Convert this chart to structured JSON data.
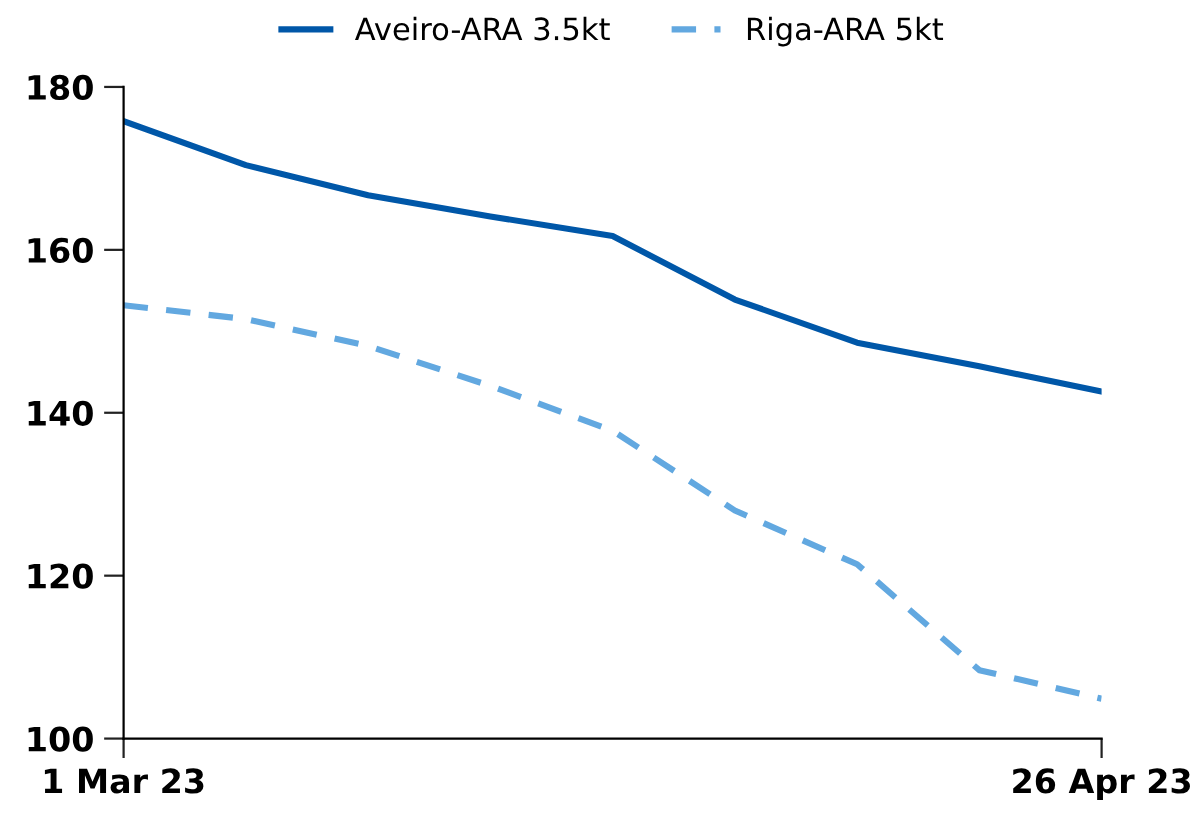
{
  "chart_data": {
    "type": "line",
    "x": [
      "2023-03-01",
      "2023-03-08",
      "2023-03-15",
      "2023-03-22",
      "2023-03-29",
      "2023-04-05",
      "2023-04-12",
      "2023-04-19",
      "2023-04-26"
    ],
    "series": [
      {
        "name": "Aveiro-ARA 3.5kt",
        "color": "#0057a8",
        "line_style": "solid",
        "values": [
          175.8,
          170.4,
          166.7,
          164.1,
          161.7,
          153.9,
          148.6,
          145.7,
          142.6
        ]
      },
      {
        "name": "Riga-ARA 5kt",
        "color": "#62a8e0",
        "line_style": "dashed",
        "values": [
          153.2,
          151.5,
          148.2,
          143.3,
          137.8,
          128.0,
          121.4,
          108.4,
          104.9
        ]
      }
    ],
    "xlim": [
      "2023-03-01",
      "2023-04-26"
    ],
    "xticks": [
      {
        "value": "2023-03-01",
        "label": "1 Mar 23"
      },
      {
        "value": "2023-04-26",
        "label": "26 Apr 23"
      }
    ],
    "ylim": [
      100,
      180
    ],
    "yticks": [
      100,
      120,
      140,
      160,
      180
    ],
    "grid": false,
    "legend": "top",
    "marker": "none"
  }
}
